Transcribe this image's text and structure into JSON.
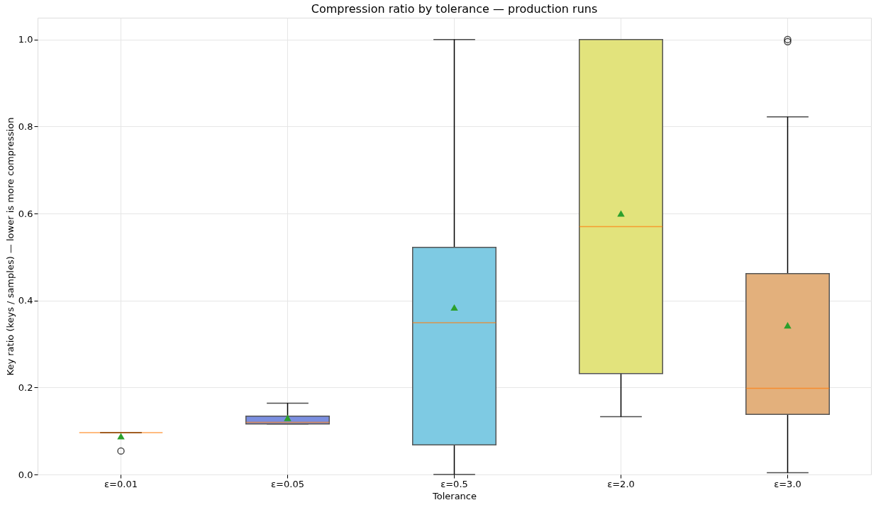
{
  "chart_data": {
    "type": "box",
    "title": "Compression ratio by tolerance — production runs",
    "xlabel": "Tolerance",
    "ylabel": "Key ratio (keys / samples)  — lower is more compression",
    "categories": [
      "ε=0.01",
      "ε=0.05",
      "ε=0.5",
      "ε=2.0",
      "ε=3.0"
    ],
    "colors": [
      null,
      "#7b8fe0",
      "#7ecae3",
      "#e2e37c",
      "#e3b07c"
    ],
    "boxes": [
      {
        "low": 0.096,
        "q1": 0.096,
        "median": 0.096,
        "q3": 0.096,
        "high": 0.096,
        "mean": 0.088,
        "outliers": [
          0.054
        ]
      },
      {
        "low": 0.116,
        "q1": 0.116,
        "median": 0.12,
        "q3": 0.134,
        "high": 0.164,
        "mean": 0.13
      },
      {
        "low": 0.0,
        "q1": 0.068,
        "median": 0.349,
        "q3": 0.522,
        "high": 1.0,
        "mean": 0.384
      },
      {
        "low": 0.133,
        "q1": 0.232,
        "median": 0.57,
        "q3": 1.0,
        "high": 1.0,
        "mean": 0.6
      },
      {
        "low": 0.004,
        "q1": 0.138,
        "median": 0.198,
        "q3": 0.462,
        "high": 0.822,
        "mean": 0.343,
        "outliers": [
          0.995,
          1.0
        ]
      }
    ],
    "ylim": [
      0,
      1.05
    ],
    "yticks": [
      {
        "value": 0,
        "label": "0.0"
      },
      {
        "value": 0.2,
        "label": "0.2"
      },
      {
        "value": 0.4,
        "label": "0.4"
      },
      {
        "value": 0.6,
        "label": "0.6"
      },
      {
        "value": 0.8,
        "label": "0.8"
      },
      {
        "value": 1.0,
        "label": "1.0"
      }
    ],
    "grid": true,
    "marker": "triangle"
  }
}
